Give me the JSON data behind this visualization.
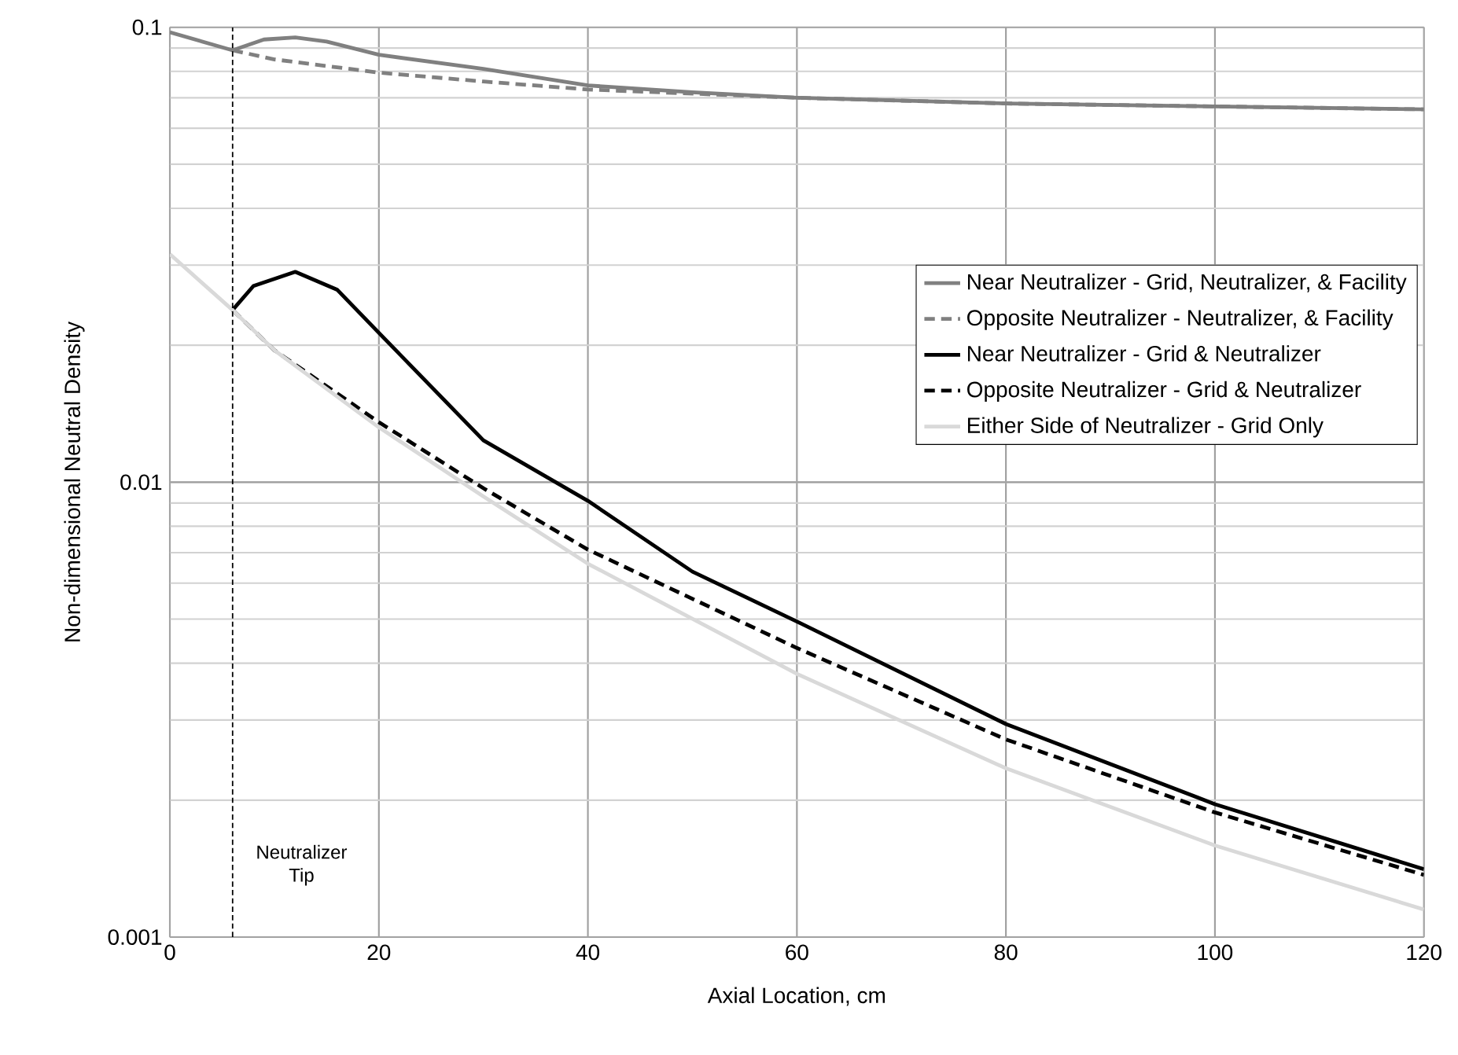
{
  "chart_data": {
    "type": "line",
    "xlabel": "Axial Location, cm",
    "ylabel": "Non-dimensional Neutral Density",
    "log": "y",
    "grid": true,
    "legend": "right",
    "marker": "none",
    "xlim": [
      0,
      120
    ],
    "xticks": [
      0,
      20,
      40,
      60,
      80,
      100,
      120
    ],
    "ylim": [
      0.001,
      0.1
    ],
    "yticks": [
      0.001,
      0.01,
      0.1
    ],
    "ref_lines": [
      {
        "axis": "x",
        "value": 6,
        "label": "Neutralizer Tip",
        "color": "#000000",
        "line_style": "dashed"
      }
    ],
    "series": [
      {
        "name": "Near Neutralizer - Grid, Neutralizer, & Facility",
        "color": "#808080",
        "line_style": "solid",
        "x": [
          0,
          6,
          9,
          12,
          15,
          20,
          30,
          40,
          50,
          60,
          80,
          100,
          120
        ],
        "values": [
          0.0975,
          0.089,
          0.094,
          0.095,
          0.093,
          0.087,
          0.081,
          0.0745,
          0.072,
          0.07,
          0.068,
          0.067,
          0.066
        ]
      },
      {
        "name": "Opposite Neutralizer - Neutralizer, & Facility",
        "color": "#808080",
        "line_style": "dashed",
        "x": [
          6,
          10,
          20,
          30,
          40,
          60,
          80,
          100,
          120
        ],
        "values": [
          0.089,
          0.085,
          0.0795,
          0.076,
          0.073,
          0.07,
          0.068,
          0.067,
          0.066
        ]
      },
      {
        "name": "Near Neutralizer - Grid & Neutralizer",
        "color": "#000000",
        "line_style": "solid",
        "x": [
          6,
          8,
          12,
          16,
          20,
          30,
          40,
          50,
          60,
          80,
          100,
          120
        ],
        "values": [
          0.0239,
          0.027,
          0.029,
          0.0265,
          0.0213,
          0.01236,
          0.0091,
          0.00636,
          0.00494,
          0.00294,
          0.00196,
          0.00141
        ]
      },
      {
        "name": "Opposite Neutralizer - Grid & Neutralizer",
        "color": "#000000",
        "line_style": "dashed",
        "x": [
          6,
          10,
          20,
          30,
          40,
          60,
          80,
          100,
          120
        ],
        "values": [
          0.0239,
          0.0195,
          0.01355,
          0.0097,
          0.00711,
          0.00432,
          0.00272,
          0.00188,
          0.00137
        ]
      },
      {
        "name": "Either Side of Neutralizer - Grid Only",
        "color": "#d9d9d9",
        "line_style": "solid",
        "x": [
          0,
          6,
          10,
          20,
          30,
          40,
          60,
          80,
          100,
          120
        ],
        "values": [
          0.0317,
          0.0239,
          0.0195,
          0.0132,
          0.0093,
          0.00662,
          0.00379,
          0.00235,
          0.00159,
          0.00115
        ]
      }
    ]
  }
}
